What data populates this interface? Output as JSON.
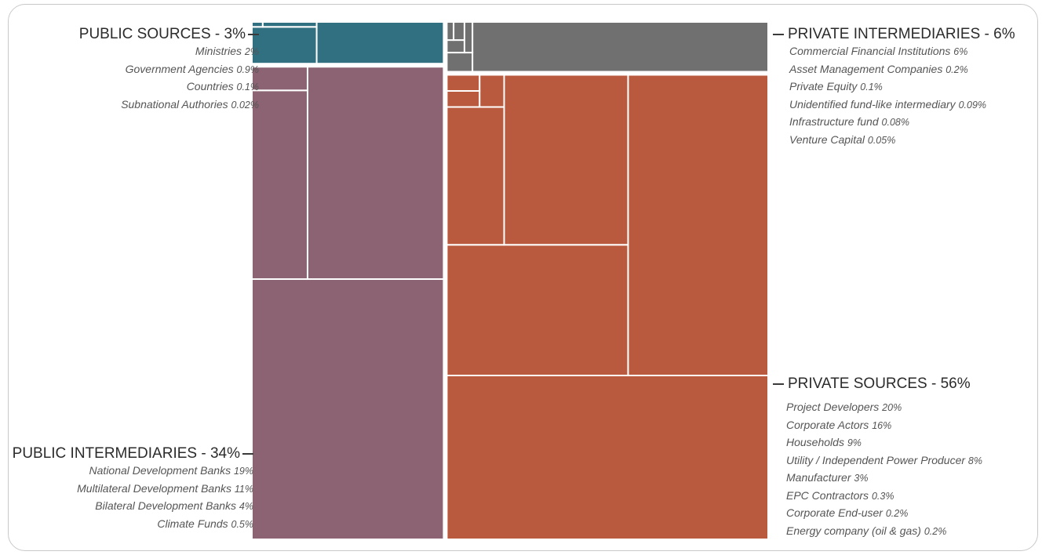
{
  "chart_data": {
    "type": "treemap",
    "colors": {
      "public_sources": "#317080",
      "public_intermediaries": "#8b6372",
      "private_intermediaries": "#707070",
      "private_sources": "#b95a3e"
    },
    "groups": [
      {
        "key": "public_sources",
        "label": "PUBLIC SOURCES",
        "value_label": "3%",
        "value": 3,
        "items": [
          {
            "name": "Ministries",
            "value_label": "2%",
            "value": 2
          },
          {
            "name": "Government Agencies",
            "value_label": "0.9%",
            "value": 0.9
          },
          {
            "name": "Countries",
            "value_label": "0.1%",
            "value": 0.1
          },
          {
            "name": "Subnational Authories",
            "value_label": "0.02%",
            "value": 0.02
          }
        ]
      },
      {
        "key": "public_intermediaries",
        "label": "PUBLIC INTERMEDIARIES",
        "value_label": "34%",
        "value": 34,
        "items": [
          {
            "name": "National Development Banks",
            "value_label": "19%",
            "value": 19
          },
          {
            "name": "Multilateral Development Banks",
            "value_label": "11%",
            "value": 11
          },
          {
            "name": "Bilateral Development Banks",
            "value_label": "4%",
            "value": 4
          },
          {
            "name": "Climate Funds",
            "value_label": "0.5%",
            "value": 0.5
          }
        ]
      },
      {
        "key": "private_intermediaries",
        "label": "PRIVATE INTERMEDIARIES",
        "value_label": "6%",
        "value": 6,
        "items": [
          {
            "name": "Commercial Financial Institutions",
            "value_label": "6%",
            "value": 6
          },
          {
            "name": "Asset Management Companies",
            "value_label": "0.2%",
            "value": 0.2
          },
          {
            "name": "Private Equity",
            "value_label": "0.1%",
            "value": 0.1
          },
          {
            "name": "Unidentified fund-like intermediary",
            "value_label": "0.09%",
            "value": 0.09
          },
          {
            "name": "Infrastructure fund",
            "value_label": "0.08%",
            "value": 0.08
          },
          {
            "name": "Venture Capital",
            "value_label": "0.05%",
            "value": 0.05
          }
        ]
      },
      {
        "key": "private_sources",
        "label": "PRIVATE SOURCES",
        "value_label": "56%",
        "value": 56,
        "items": [
          {
            "name": "Project Developers",
            "value_label": "20%",
            "value": 20
          },
          {
            "name": "Corporate Actors",
            "value_label": "16%",
            "value": 16
          },
          {
            "name": "Households",
            "value_label": "9%",
            "value": 9
          },
          {
            "name": "Utility / Independent Power Producer",
            "value_label": "8%",
            "value": 8
          },
          {
            "name": "Manufacturer",
            "value_label": "3%",
            "value": 3
          },
          {
            "name": "EPC Contractors",
            "value_label": "0.3%",
            "value": 0.3
          },
          {
            "name": "Corporate End-user",
            "value_label": "0.2%",
            "value": 0.2
          },
          {
            "name": "Energy company (oil & gas)",
            "value_label": "0.2%",
            "value": 0.2
          }
        ]
      }
    ]
  }
}
